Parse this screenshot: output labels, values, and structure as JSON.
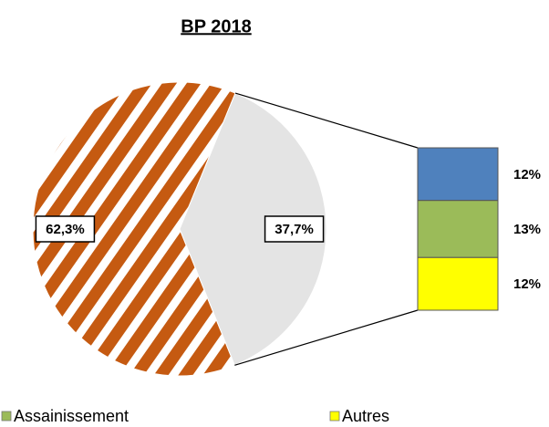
{
  "chart_data": {
    "type": "pie-of-bar",
    "title": "BP 2018",
    "values": [
      62.3,
      37.7
    ],
    "value_labels": [
      "62,3%",
      "37,7%"
    ],
    "colors": [
      "#c55a11",
      "#e4e4e4"
    ],
    "breakdown": {
      "values": [
        12,
        13,
        12
      ],
      "value_labels": [
        "12%",
        "13%",
        "12%"
      ],
      "colors": [
        "#4f81bd",
        "#9bbb59",
        "#ffff00"
      ]
    },
    "legend": [
      {
        "name": "Assainissement",
        "color": "#9bbb59"
      },
      {
        "name": "Autres",
        "color": "#ffff00"
      }
    ]
  }
}
